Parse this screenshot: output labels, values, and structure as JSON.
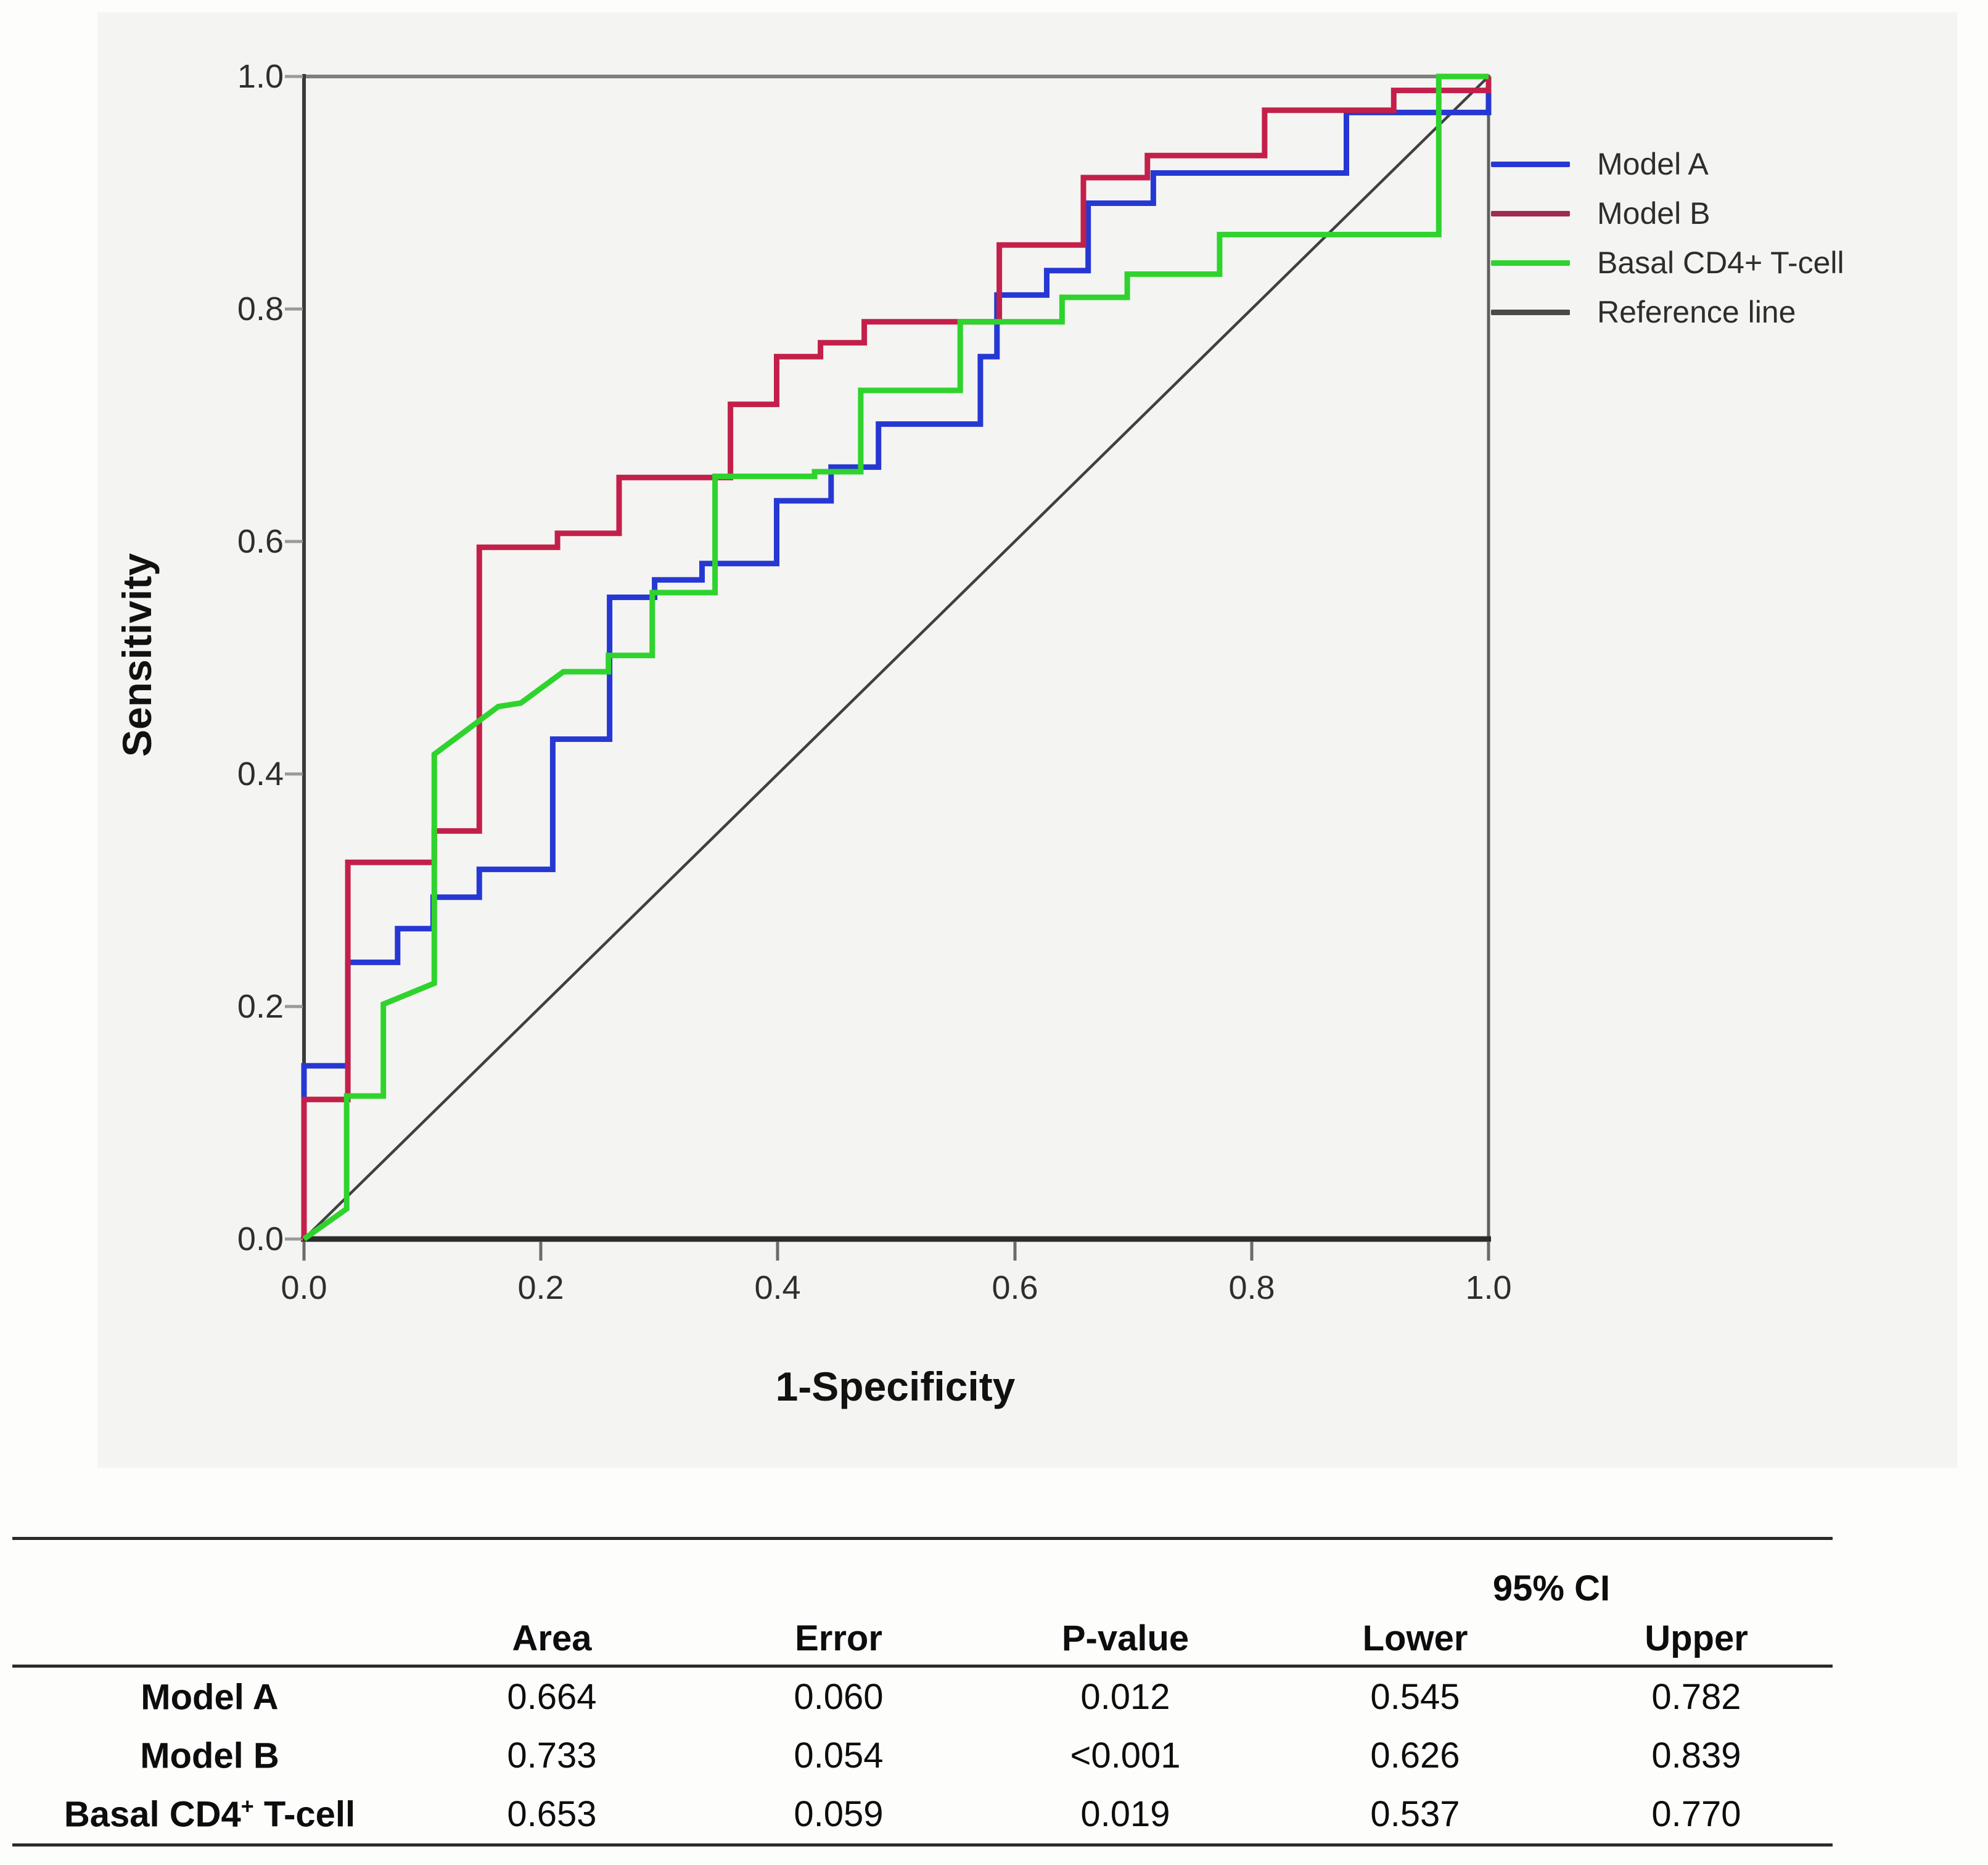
{
  "chart_data": {
    "type": "line",
    "subtype": "roc-step-curves",
    "title": "",
    "xlabel": "1-Specificity",
    "ylabel": "Sensitivity",
    "xlim": [
      0,
      1
    ],
    "ylim": [
      0,
      1
    ],
    "grid": false,
    "legend_position": "right-of-plot",
    "x_ticks": [
      "0.0",
      "0.2",
      "0.4",
      "0.6",
      "0.8",
      "1.0"
    ],
    "y_ticks": [
      "0.0",
      "0.2",
      "0.4",
      "0.6",
      "0.8",
      "1.0"
    ],
    "series": [
      {
        "name": "Model A",
        "color": "#2638d3",
        "legend_color": "#2638d3",
        "auc": 0.664,
        "points": [
          [
            0,
            0
          ],
          [
            0,
            0.149
          ],
          [
            0.037,
            0.149
          ],
          [
            0.037,
            0.238
          ],
          [
            0.079,
            0.238
          ],
          [
            0.079,
            0.267
          ],
          [
            0.109,
            0.267
          ],
          [
            0.109,
            0.294
          ],
          [
            0.148,
            0.294
          ],
          [
            0.148,
            0.318
          ],
          [
            0.21,
            0.318
          ],
          [
            0.21,
            0.43
          ],
          [
            0.258,
            0.43
          ],
          [
            0.258,
            0.552
          ],
          [
            0.296,
            0.552
          ],
          [
            0.296,
            0.567
          ],
          [
            0.336,
            0.567
          ],
          [
            0.336,
            0.581
          ],
          [
            0.399,
            0.581
          ],
          [
            0.399,
            0.635
          ],
          [
            0.445,
            0.635
          ],
          [
            0.445,
            0.664
          ],
          [
            0.485,
            0.664
          ],
          [
            0.485,
            0.701
          ],
          [
            0.571,
            0.701
          ],
          [
            0.571,
            0.759
          ],
          [
            0.585,
            0.759
          ],
          [
            0.585,
            0.812
          ],
          [
            0.627,
            0.812
          ],
          [
            0.627,
            0.833
          ],
          [
            0.662,
            0.833
          ],
          [
            0.662,
            0.891
          ],
          [
            0.717,
            0.891
          ],
          [
            0.717,
            0.917
          ],
          [
            0.88,
            0.917
          ],
          [
            0.88,
            0.969
          ],
          [
            1,
            0.969
          ],
          [
            1,
            1
          ]
        ]
      },
      {
        "name": "Model B",
        "color": "#c2204a",
        "legend_color": "#9e2c52",
        "auc": 0.733,
        "points": [
          [
            0,
            0
          ],
          [
            0,
            0.12
          ],
          [
            0.037,
            0.12
          ],
          [
            0.037,
            0.324
          ],
          [
            0.11,
            0.324
          ],
          [
            0.11,
            0.351
          ],
          [
            0.148,
            0.351
          ],
          [
            0.148,
            0.595
          ],
          [
            0.214,
            0.595
          ],
          [
            0.214,
            0.607
          ],
          [
            0.266,
            0.607
          ],
          [
            0.266,
            0.655
          ],
          [
            0.36,
            0.655
          ],
          [
            0.36,
            0.718
          ],
          [
            0.399,
            0.718
          ],
          [
            0.399,
            0.759
          ],
          [
            0.436,
            0.759
          ],
          [
            0.436,
            0.771
          ],
          [
            0.473,
            0.771
          ],
          [
            0.473,
            0.789
          ],
          [
            0.587,
            0.789
          ],
          [
            0.587,
            0.855
          ],
          [
            0.658,
            0.855
          ],
          [
            0.658,
            0.913
          ],
          [
            0.712,
            0.913
          ],
          [
            0.712,
            0.932
          ],
          [
            0.811,
            0.932
          ],
          [
            0.811,
            0.971
          ],
          [
            0.92,
            0.971
          ],
          [
            0.92,
            0.988
          ],
          [
            1,
            0.988
          ],
          [
            1,
            1
          ]
        ]
      },
      {
        "name": "Basal CD4+ T-cell",
        "color": "#2fd32d",
        "legend_color": "#2fd32d",
        "auc": 0.653,
        "points": [
          [
            0,
            0
          ],
          [
            0.036,
            0.026
          ],
          [
            0.036,
            0.123
          ],
          [
            0.067,
            0.123
          ],
          [
            0.067,
            0.202
          ],
          [
            0.11,
            0.22
          ],
          [
            0.11,
            0.417
          ],
          [
            0.164,
            0.458
          ],
          [
            0.183,
            0.461
          ],
          [
            0.219,
            0.488
          ],
          [
            0.257,
            0.488
          ],
          [
            0.257,
            0.502
          ],
          [
            0.294,
            0.502
          ],
          [
            0.294,
            0.556
          ],
          [
            0.347,
            0.556
          ],
          [
            0.347,
            0.656
          ],
          [
            0.431,
            0.656
          ],
          [
            0.431,
            0.66
          ],
          [
            0.47,
            0.66
          ],
          [
            0.47,
            0.73
          ],
          [
            0.554,
            0.73
          ],
          [
            0.554,
            0.789
          ],
          [
            0.64,
            0.789
          ],
          [
            0.64,
            0.81
          ],
          [
            0.695,
            0.81
          ],
          [
            0.695,
            0.83
          ],
          [
            0.773,
            0.83
          ],
          [
            0.773,
            0.864
          ],
          [
            0.958,
            0.864
          ],
          [
            0.958,
            1
          ],
          [
            1,
            1
          ]
        ]
      },
      {
        "name": "Reference line",
        "color": "#404040",
        "legend_color": "#4a4a4a",
        "points": [
          [
            0,
            0
          ],
          [
            1,
            1
          ]
        ]
      }
    ]
  },
  "table": {
    "ci_header": "95% CI",
    "columns": [
      "Area",
      "Error",
      "P-value",
      "Lower",
      "Upper"
    ],
    "rows": [
      {
        "label_pre": "Model A",
        "label_sup": "",
        "label_post": "",
        "area": "0.664",
        "error": "0.060",
        "p": "0.012",
        "lower": "0.545",
        "upper": "0.782"
      },
      {
        "label_pre": "Model B",
        "label_sup": "",
        "label_post": "",
        "area": "0.733",
        "error": "0.054",
        "p": "<0.001",
        "lower": "0.626",
        "upper": "0.839"
      },
      {
        "label_pre": "Basal CD4",
        "label_sup": "+",
        "label_post": " T-cell",
        "area": "0.653",
        "error": "0.059",
        "p": "0.019",
        "lower": "0.537",
        "upper": "0.770"
      }
    ]
  }
}
